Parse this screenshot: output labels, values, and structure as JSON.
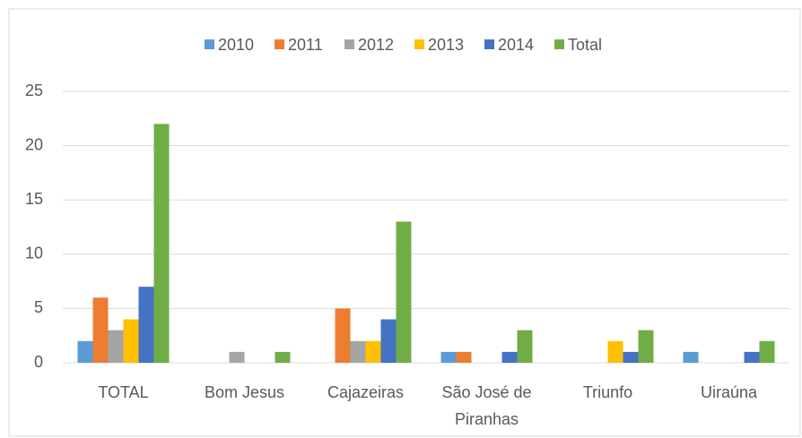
{
  "chart_data": {
    "type": "bar",
    "categories": [
      "TOTAL",
      "Bom Jesus",
      "Cajazeiras",
      "São José de Piranhas",
      "Triunfo",
      "Uiraúna"
    ],
    "series": [
      {
        "name": "2010",
        "color": "#5b9bd5",
        "values": [
          2,
          0,
          0,
          1,
          0,
          1
        ]
      },
      {
        "name": "2011",
        "color": "#ed7d31",
        "values": [
          6,
          0,
          5,
          1,
          0,
          0
        ]
      },
      {
        "name": "2012",
        "color": "#a5a5a5",
        "values": [
          3,
          1,
          2,
          0,
          0,
          0
        ]
      },
      {
        "name": "2013",
        "color": "#ffc000",
        "values": [
          4,
          0,
          2,
          0,
          2,
          0
        ]
      },
      {
        "name": "2014",
        "color": "#4472c4",
        "values": [
          7,
          0,
          4,
          1,
          1,
          1
        ]
      },
      {
        "name": "Total",
        "color": "#70ad47",
        "values": [
          22,
          1,
          13,
          3,
          3,
          2
        ]
      }
    ],
    "ylim": [
      0,
      25
    ],
    "yticks": [
      0,
      5,
      10,
      15,
      20,
      25
    ],
    "grid": true,
    "legend": "top"
  }
}
